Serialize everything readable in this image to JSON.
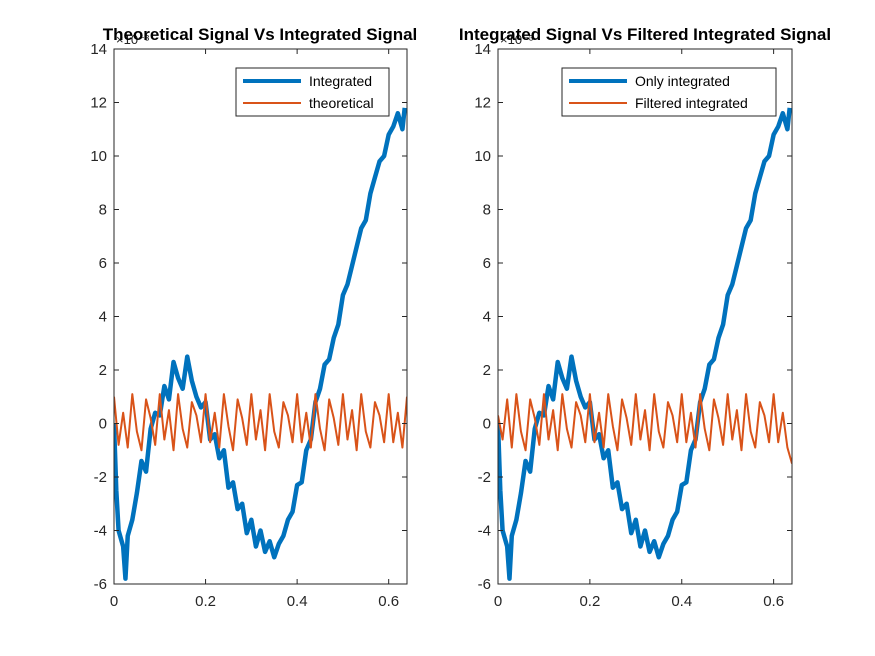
{
  "chart_data": [
    {
      "type": "line",
      "title": "Theoretical Signal Vs Integrated Signal",
      "y_exponent_label": "×10⁻³",
      "xlim": [
        0,
        0.64
      ],
      "ylim": [
        -6,
        14
      ],
      "xticks": [
        0,
        0.2,
        0.4,
        0.6
      ],
      "xtick_labels": [
        "0",
        "0.2",
        "0.4",
        "0.6"
      ],
      "yticks": [
        -6,
        -4,
        -2,
        0,
        2,
        4,
        6,
        8,
        10,
        12,
        14
      ],
      "ytick_labels": [
        "-6",
        "-4",
        "-2",
        "0",
        "2",
        "4",
        "6",
        "8",
        "10",
        "12",
        "14"
      ],
      "legend_position": "top-right",
      "series": [
        {
          "name": "Integrated",
          "color": "#0072BD",
          "line": "thick",
          "x": [
            0,
            0.005,
            0.01,
            0.02,
            0.025,
            0.03,
            0.04,
            0.05,
            0.06,
            0.07,
            0.08,
            0.09,
            0.1,
            0.11,
            0.12,
            0.13,
            0.14,
            0.15,
            0.16,
            0.17,
            0.18,
            0.19,
            0.2,
            0.21,
            0.22,
            0.23,
            0.24,
            0.25,
            0.26,
            0.27,
            0.28,
            0.29,
            0.3,
            0.31,
            0.32,
            0.33,
            0.34,
            0.35,
            0.36,
            0.37,
            0.38,
            0.39,
            0.4,
            0.41,
            0.42,
            0.43,
            0.44,
            0.45,
            0.46,
            0.47,
            0.48,
            0.49,
            0.5,
            0.51,
            0.52,
            0.53,
            0.54,
            0.55,
            0.56,
            0.57,
            0.58,
            0.59,
            0.6,
            0.61,
            0.62,
            0.63,
            0.635
          ],
          "values": [
            0,
            -2.5,
            -4.0,
            -4.6,
            -5.8,
            -4.2,
            -3.6,
            -2.6,
            -1.4,
            -1.8,
            -0.2,
            0.4,
            0.3,
            1.4,
            0.9,
            2.3,
            1.7,
            1.3,
            2.5,
            1.6,
            1.0,
            0.6,
            0.8,
            -0.6,
            -0.4,
            -1.3,
            -1.0,
            -2.4,
            -2.2,
            -3.2,
            -3.0,
            -4.1,
            -3.6,
            -4.6,
            -4.0,
            -4.8,
            -4.4,
            -5.0,
            -4.5,
            -4.2,
            -3.6,
            -3.3,
            -2.3,
            -2.2,
            -1.0,
            -0.6,
            0.8,
            1.3,
            2.2,
            2.4,
            3.2,
            3.7,
            4.8,
            5.2,
            5.9,
            6.6,
            7.3,
            7.6,
            8.6,
            9.2,
            9.8,
            10.0,
            10.8,
            11.1,
            11.6,
            11.0,
            11.8
          ]
        },
        {
          "name": "theoretical",
          "color": "#D95319",
          "line": "thin",
          "x": [
            0,
            0.01,
            0.02,
            0.03,
            0.04,
            0.05,
            0.06,
            0.07,
            0.08,
            0.09,
            0.1,
            0.11,
            0.12,
            0.13,
            0.14,
            0.15,
            0.16,
            0.17,
            0.18,
            0.19,
            0.2,
            0.21,
            0.22,
            0.23,
            0.24,
            0.25,
            0.26,
            0.27,
            0.28,
            0.29,
            0.3,
            0.31,
            0.32,
            0.33,
            0.34,
            0.35,
            0.36,
            0.37,
            0.38,
            0.39,
            0.4,
            0.41,
            0.42,
            0.43,
            0.44,
            0.45,
            0.46,
            0.47,
            0.48,
            0.49,
            0.5,
            0.51,
            0.52,
            0.53,
            0.54,
            0.55,
            0.56,
            0.57,
            0.58,
            0.59,
            0.6,
            0.61,
            0.62,
            0.63,
            0.64
          ],
          "values": [
            1.0,
            -0.8,
            0.4,
            -0.9,
            1.1,
            -0.3,
            -1.0,
            0.9,
            0.2,
            -0.8,
            1.1,
            -0.6,
            0.5,
            -1.0,
            1.1,
            -0.2,
            -0.9,
            0.8,
            0.3,
            -0.7,
            1.1,
            -0.7,
            0.4,
            -0.9,
            1.1,
            -0.1,
            -1.0,
            0.9,
            0.2,
            -0.8,
            1.1,
            -0.6,
            0.5,
            -1.0,
            1.1,
            -0.3,
            -0.9,
            0.8,
            0.3,
            -0.7,
            1.1,
            -0.7,
            0.4,
            -0.9,
            1.1,
            -0.2,
            -1.0,
            0.9,
            0.2,
            -0.8,
            1.1,
            -0.6,
            0.5,
            -1.0,
            1.1,
            -0.3,
            -0.9,
            0.8,
            0.3,
            -0.7,
            1.1,
            -0.7,
            0.4,
            -0.9,
            1.0
          ]
        }
      ]
    },
    {
      "type": "line",
      "title": "Integrated Signal Vs Filtered Integrated Signal",
      "y_exponent_label": "×10⁻³",
      "xlim": [
        0,
        0.64
      ],
      "ylim": [
        -6,
        14
      ],
      "xticks": [
        0,
        0.2,
        0.4,
        0.6
      ],
      "xtick_labels": [
        "0",
        "0.2",
        "0.4",
        "0.6"
      ],
      "yticks": [
        -6,
        -4,
        -2,
        0,
        2,
        4,
        6,
        8,
        10,
        12,
        14
      ],
      "ytick_labels": [
        "-6",
        "-4",
        "-2",
        "0",
        "2",
        "4",
        "6",
        "8",
        "10",
        "12",
        "14"
      ],
      "legend_position": "top-right",
      "series": [
        {
          "name": "Only integrated",
          "color": "#0072BD",
          "line": "thick",
          "x": [
            0,
            0.005,
            0.01,
            0.02,
            0.025,
            0.03,
            0.04,
            0.05,
            0.06,
            0.07,
            0.08,
            0.09,
            0.1,
            0.11,
            0.12,
            0.13,
            0.14,
            0.15,
            0.16,
            0.17,
            0.18,
            0.19,
            0.2,
            0.21,
            0.22,
            0.23,
            0.24,
            0.25,
            0.26,
            0.27,
            0.28,
            0.29,
            0.3,
            0.31,
            0.32,
            0.33,
            0.34,
            0.35,
            0.36,
            0.37,
            0.38,
            0.39,
            0.4,
            0.41,
            0.42,
            0.43,
            0.44,
            0.45,
            0.46,
            0.47,
            0.48,
            0.49,
            0.5,
            0.51,
            0.52,
            0.53,
            0.54,
            0.55,
            0.56,
            0.57,
            0.58,
            0.59,
            0.6,
            0.61,
            0.62,
            0.63,
            0.635
          ],
          "values": [
            0,
            -2.5,
            -4.0,
            -4.6,
            -5.8,
            -4.2,
            -3.6,
            -2.6,
            -1.4,
            -1.8,
            -0.2,
            0.4,
            0.3,
            1.4,
            0.9,
            2.3,
            1.7,
            1.3,
            2.5,
            1.6,
            1.0,
            0.6,
            0.8,
            -0.6,
            -0.4,
            -1.3,
            -1.0,
            -2.4,
            -2.2,
            -3.2,
            -3.0,
            -4.1,
            -3.6,
            -4.6,
            -4.0,
            -4.8,
            -4.4,
            -5.0,
            -4.5,
            -4.2,
            -3.6,
            -3.3,
            -2.3,
            -2.2,
            -1.0,
            -0.6,
            0.8,
            1.3,
            2.2,
            2.4,
            3.2,
            3.7,
            4.8,
            5.2,
            5.9,
            6.6,
            7.3,
            7.6,
            8.6,
            9.2,
            9.8,
            10.0,
            10.8,
            11.1,
            11.6,
            11.0,
            11.8
          ]
        },
        {
          "name": "Filtered integrated",
          "color": "#D95319",
          "line": "thin",
          "x": [
            0,
            0.01,
            0.02,
            0.03,
            0.04,
            0.05,
            0.06,
            0.07,
            0.08,
            0.09,
            0.1,
            0.11,
            0.12,
            0.13,
            0.14,
            0.15,
            0.16,
            0.17,
            0.18,
            0.19,
            0.2,
            0.21,
            0.22,
            0.23,
            0.24,
            0.25,
            0.26,
            0.27,
            0.28,
            0.29,
            0.3,
            0.31,
            0.32,
            0.33,
            0.34,
            0.35,
            0.36,
            0.37,
            0.38,
            0.39,
            0.4,
            0.41,
            0.42,
            0.43,
            0.44,
            0.45,
            0.46,
            0.47,
            0.48,
            0.49,
            0.5,
            0.51,
            0.52,
            0.53,
            0.54,
            0.55,
            0.56,
            0.57,
            0.58,
            0.59,
            0.6,
            0.61,
            0.62,
            0.63,
            0.64
          ],
          "values": [
            0.3,
            -0.6,
            0.9,
            -0.9,
            1.1,
            -0.3,
            -1.0,
            0.9,
            0.2,
            -0.8,
            1.1,
            -0.6,
            0.5,
            -1.0,
            1.1,
            -0.2,
            -0.9,
            0.8,
            0.3,
            -0.7,
            1.1,
            -0.7,
            0.4,
            -0.9,
            1.1,
            -0.1,
            -1.0,
            0.9,
            0.2,
            -0.8,
            1.1,
            -0.6,
            0.5,
            -1.0,
            1.1,
            -0.3,
            -0.9,
            0.8,
            0.3,
            -0.7,
            1.1,
            -0.7,
            0.4,
            -0.9,
            1.1,
            -0.2,
            -1.0,
            0.9,
            0.2,
            -0.8,
            1.1,
            -0.6,
            0.5,
            -1.0,
            1.1,
            -0.3,
            -0.9,
            0.8,
            0.3,
            -0.7,
            1.1,
            -0.7,
            0.4,
            -0.9,
            -1.5
          ]
        }
      ]
    }
  ]
}
